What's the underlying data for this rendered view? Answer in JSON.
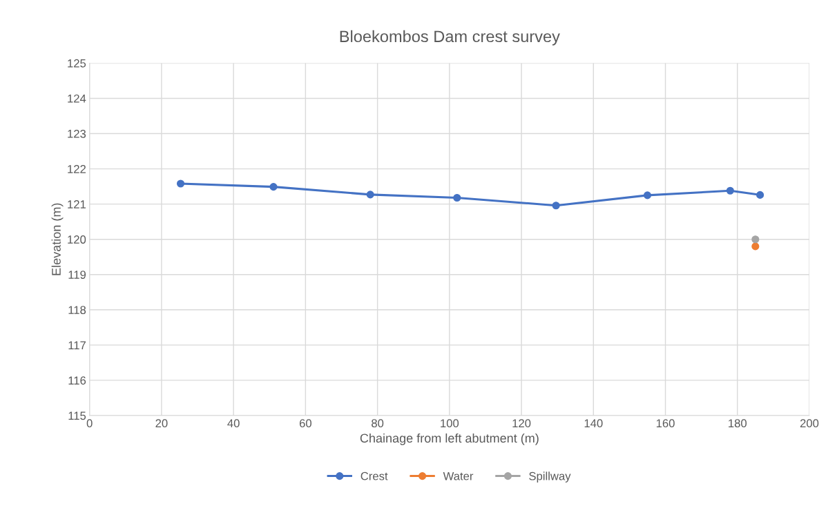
{
  "chart_data": {
    "type": "line",
    "title": "Bloekombos Dam crest survey",
    "xlabel": "Chainage from left abutment (m)",
    "ylabel": "Elevation (m)",
    "xlim": [
      0,
      200
    ],
    "xticks": [
      0,
      20,
      40,
      60,
      80,
      100,
      120,
      140,
      160,
      180,
      200
    ],
    "ylim": [
      115,
      125
    ],
    "yticks": [
      115,
      116,
      117,
      118,
      119,
      120,
      121,
      122,
      123,
      124,
      125
    ],
    "grid": true,
    "legend": "bottom",
    "marker": "circle",
    "line_style": "solid",
    "series": [
      {
        "name": "Crest",
        "color": "#4472c4",
        "x": [
          25.3,
          51.1,
          78.0,
          102.1,
          129.6,
          155.0,
          178.0,
          186.3
        ],
        "values": [
          121.58,
          121.49,
          121.27,
          121.18,
          120.96,
          121.25,
          121.38,
          121.26
        ]
      },
      {
        "name": "Water",
        "color": "#ed7d31",
        "x": [
          185
        ],
        "values": [
          119.8
        ]
      },
      {
        "name": "Spillway",
        "color": "#a5a5a5",
        "x": [
          185
        ],
        "values": [
          120.0
        ]
      }
    ]
  }
}
